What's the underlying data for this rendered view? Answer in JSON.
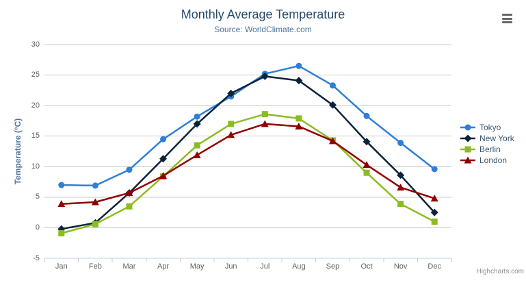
{
  "chart_data": {
    "type": "line",
    "title": "Monthly Average Temperature",
    "subtitle": "Source: WorldClimate.com",
    "categories": [
      "Jan",
      "Feb",
      "Mar",
      "Apr",
      "May",
      "Jun",
      "Jul",
      "Aug",
      "Sep",
      "Oct",
      "Nov",
      "Dec"
    ],
    "series": [
      {
        "name": "Tokyo",
        "color": "#2f7ed8",
        "marker": "circle",
        "values": [
          7.0,
          6.9,
          9.5,
          14.5,
          18.2,
          21.5,
          25.2,
          26.5,
          23.3,
          18.3,
          13.9,
          9.6
        ]
      },
      {
        "name": "New York",
        "color": "#0d233a",
        "marker": "diamond",
        "values": [
          -0.2,
          0.8,
          5.7,
          11.3,
          17.0,
          22.0,
          24.8,
          24.1,
          20.1,
          14.1,
          8.6,
          2.5
        ]
      },
      {
        "name": "Berlin",
        "color": "#8bbc21",
        "marker": "square",
        "values": [
          -0.9,
          0.6,
          3.5,
          8.4,
          13.5,
          17.0,
          18.6,
          17.9,
          14.3,
          9.0,
          3.9,
          1.0
        ]
      },
      {
        "name": "London",
        "color": "#910000",
        "marker": "triangle",
        "values": [
          3.9,
          4.2,
          5.7,
          8.5,
          11.9,
          15.2,
          17.0,
          16.6,
          14.2,
          10.3,
          6.6,
          4.8
        ]
      }
    ],
    "xlabel": "",
    "ylabel": "Temperature (°C)",
    "ylim": [
      -5,
      30
    ],
    "yticks": [
      -5,
      0,
      5,
      10,
      15,
      20,
      25,
      30
    ],
    "grid": true,
    "legend_position": "right"
  },
  "colors": {
    "title": "#274b6d",
    "subtitle": "#4d759e",
    "grid": "#c8c8c8",
    "axis_line": "#c0d0e0",
    "tick_label": "#606060",
    "legend_text": "#3E576F",
    "credit": "#8f8f8f",
    "menu_icon": "#666666"
  },
  "credits": {
    "text": "Highcharts.com"
  },
  "export_menu": {
    "tooltip": "Chart context menu"
  }
}
